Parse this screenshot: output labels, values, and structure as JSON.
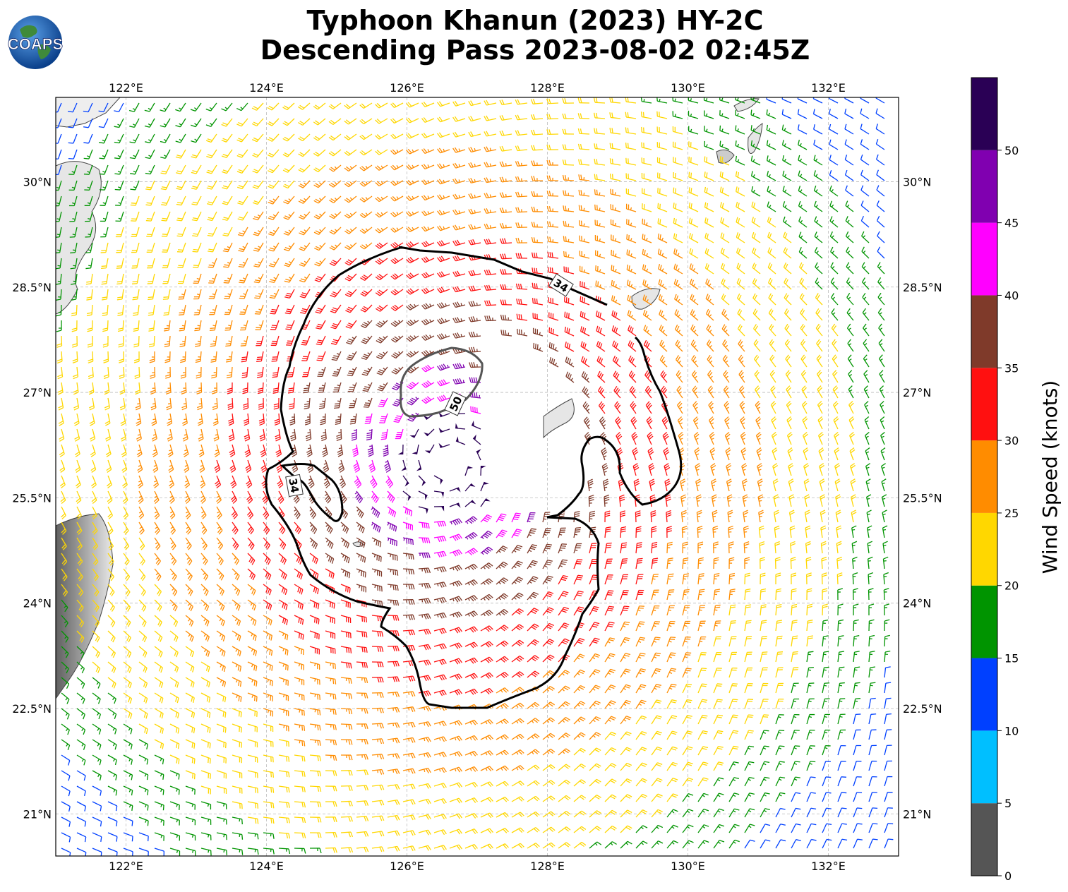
{
  "title_line1": "Typhoon Khanun (2023) HY-2C",
  "title_line2": "Descending Pass 2023-08-02 02:45Z",
  "logo_text": "COAPS",
  "map": {
    "lon_range": [
      121.0,
      133.0
    ],
    "lat_range": [
      20.4,
      31.2
    ],
    "lon_ticks": [
      "122°E",
      "124°E",
      "126°E",
      "128°E",
      "130°E",
      "132°E"
    ],
    "lat_ticks": [
      "30°N",
      "28.5°N",
      "27°N",
      "25.5°N",
      "24°N",
      "22.5°N",
      "21°N"
    ],
    "storm_center": [
      126.6,
      26.0
    ],
    "contour_labels": [
      "34",
      "34",
      "50"
    ]
  },
  "colorbar": {
    "label": "Wind Speed (knots)",
    "tick_labels": [
      "0",
      "5",
      "10",
      "15",
      "20",
      "25",
      "30",
      "35",
      "40",
      "45",
      "50"
    ],
    "bins": [
      {
        "min": 0,
        "max": 5,
        "color": "#555555"
      },
      {
        "min": 5,
        "max": 10,
        "color": "#00bfff"
      },
      {
        "min": 10,
        "max": 15,
        "color": "#0040ff"
      },
      {
        "min": 15,
        "max": 20,
        "color": "#009400"
      },
      {
        "min": 20,
        "max": 25,
        "color": "#ffd700"
      },
      {
        "min": 25,
        "max": 30,
        "color": "#ff8c00"
      },
      {
        "min": 30,
        "max": 35,
        "color": "#ff1010"
      },
      {
        "min": 35,
        "max": 40,
        "color": "#7f3a2a"
      },
      {
        "min": 40,
        "max": 45,
        "color": "#ff00ff"
      },
      {
        "min": 45,
        "max": 50,
        "color": "#8000b0"
      },
      {
        "min": 50,
        "max": 55,
        "color": "#2a0055"
      }
    ]
  }
}
